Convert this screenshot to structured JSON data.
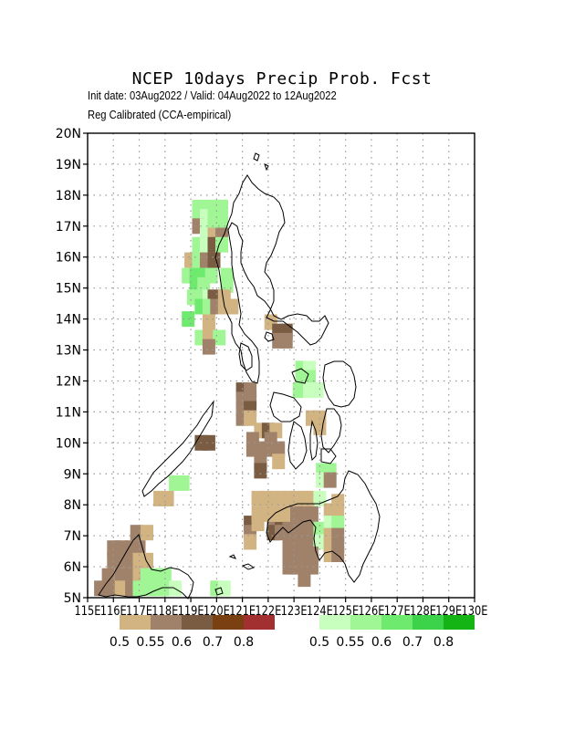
{
  "title": "NCEP 10days Precip Prob. Fcst",
  "subtitle_1": "Init date: 03Aug2022 / Valid: 04Aug2022 to 12Aug2022",
  "subtitle_2": "Reg Calibrated (CCA-empirical)",
  "lat_labels": [
    "5N",
    "6N",
    "7N",
    "8N",
    "9N",
    "10N",
    "11N",
    "12N",
    "13N",
    "14N",
    "15N",
    "16N",
    "17N",
    "18N",
    "19N",
    "20N"
  ],
  "lon_labels": [
    "115E",
    "116E",
    "117E",
    "118E",
    "119E",
    "120E",
    "121E",
    "122E",
    "123E",
    "124E",
    "125E",
    "126E",
    "127E",
    "128E",
    "129E",
    "130E"
  ],
  "map": {
    "lon_range": [
      115,
      130
    ],
    "lat_range": [
      5,
      20
    ],
    "grid": "dotted 1-degree"
  },
  "legend_dry": {
    "labels": [
      "0.5",
      "0.55",
      "0.6",
      "0.7",
      "0.8"
    ],
    "colors": [
      "#d2b483",
      "#a0826b",
      "#7a5c43",
      "#7a4012",
      "#a23030"
    ]
  },
  "legend_wet": {
    "labels": [
      "0.5",
      "0.55",
      "0.6",
      "0.7",
      "0.8"
    ],
    "colors": [
      "#c8ffbe",
      "#a0f594",
      "#6eea6e",
      "#3cd24a",
      "#14b414"
    ]
  },
  "cells": [
    [
      119.3,
      17.6,
      5
    ],
    [
      119.6,
      17.6,
      5
    ],
    [
      119.9,
      17.6,
      5
    ],
    [
      120.2,
      17.6,
      5
    ],
    [
      119.3,
      17.3,
      5
    ],
    [
      119.6,
      17.3,
      4
    ],
    [
      119.9,
      17.3,
      5
    ],
    [
      120.2,
      17.3,
      5
    ],
    [
      119.3,
      17.0,
      2
    ],
    [
      119.6,
      17.0,
      4
    ],
    [
      119.9,
      17.0,
      5
    ],
    [
      120.2,
      17.0,
      5
    ],
    [
      119.6,
      16.7,
      4
    ],
    [
      119.9,
      16.7,
      1
    ],
    [
      120.2,
      16.7,
      2
    ],
    [
      119.3,
      16.4,
      5
    ],
    [
      119.6,
      16.4,
      4
    ],
    [
      119.9,
      16.4,
      3
    ],
    [
      120.2,
      16.4,
      5
    ],
    [
      119.0,
      15.9,
      1
    ],
    [
      119.3,
      15.9,
      5
    ],
    [
      119.6,
      15.9,
      2
    ],
    [
      119.9,
      15.9,
      3
    ],
    [
      118.9,
      15.4,
      5
    ],
    [
      119.2,
      15.4,
      6
    ],
    [
      119.5,
      15.4,
      6
    ],
    [
      119.8,
      15.4,
      5
    ],
    [
      120.4,
      15.4,
      5
    ],
    [
      119.2,
      15.1,
      6
    ],
    [
      119.5,
      15.1,
      5
    ],
    [
      120.4,
      15.1,
      5
    ],
    [
      119.1,
      14.7,
      5
    ],
    [
      119.4,
      14.7,
      5
    ],
    [
      119.7,
      14.7,
      4
    ],
    [
      119.9,
      14.7,
      3
    ],
    [
      120.3,
      14.7,
      1
    ],
    [
      119.4,
      14.4,
      6
    ],
    [
      119.7,
      14.4,
      5
    ],
    [
      120.0,
      14.4,
      2
    ],
    [
      120.3,
      14.4,
      1
    ],
    [
      120.6,
      14.4,
      1
    ],
    [
      118.9,
      14.0,
      6
    ],
    [
      119.7,
      13.9,
      1
    ],
    [
      119.7,
      13.6,
      1
    ],
    [
      119.4,
      13.4,
      5
    ],
    [
      119.7,
      13.4,
      1
    ],
    [
      120.1,
      13.4,
      5
    ],
    [
      119.7,
      13.1,
      2
    ],
    [
      122.1,
      13.9,
      1
    ],
    [
      122.4,
      13.6,
      3
    ],
    [
      122.7,
      13.6,
      3
    ],
    [
      122.4,
      13.3,
      2
    ],
    [
      122.7,
      13.3,
      2
    ],
    [
      123.3,
      12.4,
      5
    ],
    [
      123.6,
      12.4,
      4
    ],
    [
      123.3,
      12.1,
      5
    ],
    [
      123.6,
      12.1,
      5
    ],
    [
      123.2,
      11.7,
      5
    ],
    [
      123.6,
      11.7,
      4
    ],
    [
      123.9,
      11.7,
      4
    ],
    [
      121.0,
      11.7,
      3
    ],
    [
      121.3,
      11.7,
      2
    ],
    [
      121.0,
      11.4,
      2
    ],
    [
      121.3,
      11.4,
      2
    ],
    [
      121.0,
      11.1,
      2
    ],
    [
      121.3,
      11.1,
      3
    ],
    [
      121.0,
      10.8,
      2
    ],
    [
      121.3,
      10.8,
      1
    ],
    [
      121.7,
      10.4,
      1
    ],
    [
      122.0,
      10.4,
      3
    ],
    [
      122.3,
      10.4,
      1
    ],
    [
      121.4,
      10.1,
      2
    ],
    [
      122.1,
      10.1,
      2
    ],
    [
      121.4,
      9.8,
      2
    ],
    [
      121.7,
      9.8,
      2
    ],
    [
      122.1,
      9.8,
      2
    ],
    [
      122.4,
      9.8,
      2
    ],
    [
      121.7,
      9.4,
      2
    ],
    [
      122.4,
      9.4,
      1
    ],
    [
      121.7,
      9.1,
      3
    ],
    [
      123.7,
      10.8,
      1
    ],
    [
      124.0,
      10.8,
      1
    ],
    [
      124.0,
      10.5,
      1
    ],
    [
      124.1,
      9.1,
      5
    ],
    [
      124.4,
      9.1,
      5
    ],
    [
      124.1,
      8.8,
      4
    ],
    [
      124.4,
      8.8,
      2
    ],
    [
      121.6,
      8.2,
      1
    ],
    [
      121.9,
      8.2,
      1
    ],
    [
      122.2,
      8.2,
      1
    ],
    [
      122.5,
      8.2,
      1
    ],
    [
      122.8,
      8.2,
      1
    ],
    [
      123.1,
      8.2,
      1
    ],
    [
      123.4,
      8.2,
      1
    ],
    [
      123.7,
      8.2,
      1
    ],
    [
      124.0,
      8.2,
      4
    ],
    [
      121.3,
      7.4,
      3
    ],
    [
      121.3,
      7.1,
      2
    ],
    [
      121.3,
      6.8,
      1
    ],
    [
      121.6,
      7.4,
      1
    ],
    [
      122.2,
      7.4,
      2
    ],
    [
      122.5,
      7.4,
      3
    ],
    [
      122.2,
      7.1,
      3
    ],
    [
      122.5,
      7.1,
      2
    ],
    [
      121.6,
      7.7,
      1
    ],
    [
      121.9,
      7.7,
      1
    ],
    [
      122.2,
      7.7,
      1
    ],
    [
      122.5,
      7.7,
      1
    ],
    [
      122.8,
      7.7,
      1
    ],
    [
      123.1,
      7.7,
      2
    ],
    [
      123.4,
      7.7,
      2
    ],
    [
      123.7,
      7.7,
      2
    ],
    [
      122.8,
      7.2,
      2
    ],
    [
      123.1,
      7.2,
      2
    ],
    [
      123.4,
      7.2,
      2
    ],
    [
      123.7,
      7.2,
      2
    ],
    [
      124.0,
      7.2,
      5
    ],
    [
      122.8,
      6.8,
      2
    ],
    [
      123.1,
      6.8,
      2
    ],
    [
      123.4,
      6.8,
      2
    ],
    [
      123.7,
      6.8,
      2
    ],
    [
      124.0,
      6.8,
      4
    ],
    [
      122.8,
      6.4,
      2
    ],
    [
      123.1,
      6.4,
      2
    ],
    [
      123.4,
      6.4,
      2
    ],
    [
      123.7,
      6.4,
      2
    ],
    [
      122.8,
      6.0,
      2
    ],
    [
      123.1,
      6.0,
      2
    ],
    [
      123.4,
      6.0,
      2
    ],
    [
      123.7,
      6.0,
      2
    ],
    [
      123.4,
      5.6,
      2
    ],
    [
      124.4,
      7.8,
      1
    ],
    [
      124.7,
      7.8,
      1
    ],
    [
      124.7,
      8.1,
      1
    ],
    [
      124.4,
      7.4,
      4
    ],
    [
      124.7,
      7.4,
      5
    ],
    [
      124.4,
      7.0,
      1
    ],
    [
      124.7,
      7.0,
      2
    ],
    [
      124.4,
      6.7,
      1
    ],
    [
      124.7,
      6.7,
      2
    ],
    [
      124.4,
      6.4,
      1
    ],
    [
      124.7,
      6.4,
      2
    ],
    [
      119.4,
      10.0,
      3
    ],
    [
      119.7,
      10.0,
      3
    ],
    [
      117.8,
      8.2,
      1
    ],
    [
      118.1,
      8.2,
      1
    ],
    [
      118.4,
      8.7,
      5
    ],
    [
      118.7,
      8.7,
      5
    ],
    [
      116.9,
      7.1,
      2
    ],
    [
      117.3,
      7.1,
      1
    ],
    [
      116.0,
      6.6,
      2
    ],
    [
      116.3,
      6.6,
      2
    ],
    [
      116.7,
      6.6,
      2
    ],
    [
      117.0,
      6.6,
      2
    ],
    [
      116.0,
      6.2,
      2
    ],
    [
      116.3,
      6.2,
      2
    ],
    [
      116.7,
      6.2,
      2
    ],
    [
      117.0,
      6.2,
      1
    ],
    [
      117.3,
      6.2,
      1
    ],
    [
      115.8,
      5.7,
      2
    ],
    [
      116.3,
      5.7,
      2
    ],
    [
      116.7,
      5.7,
      2
    ],
    [
      117.0,
      5.7,
      1
    ],
    [
      117.3,
      5.7,
      5
    ],
    [
      117.7,
      5.7,
      5
    ],
    [
      118.0,
      5.7,
      5
    ],
    [
      115.5,
      5.3,
      2
    ],
    [
      115.9,
      5.3,
      2
    ],
    [
      116.3,
      5.3,
      1
    ],
    [
      116.7,
      5.3,
      2
    ],
    [
      117.0,
      5.3,
      5
    ],
    [
      117.4,
      5.3,
      5
    ],
    [
      117.7,
      5.3,
      5
    ],
    [
      118.0,
      5.3,
      5
    ],
    [
      118.4,
      5.3,
      4
    ],
    [
      120.0,
      5.3,
      5
    ],
    [
      120.3,
      5.3,
      4
    ]
  ]
}
